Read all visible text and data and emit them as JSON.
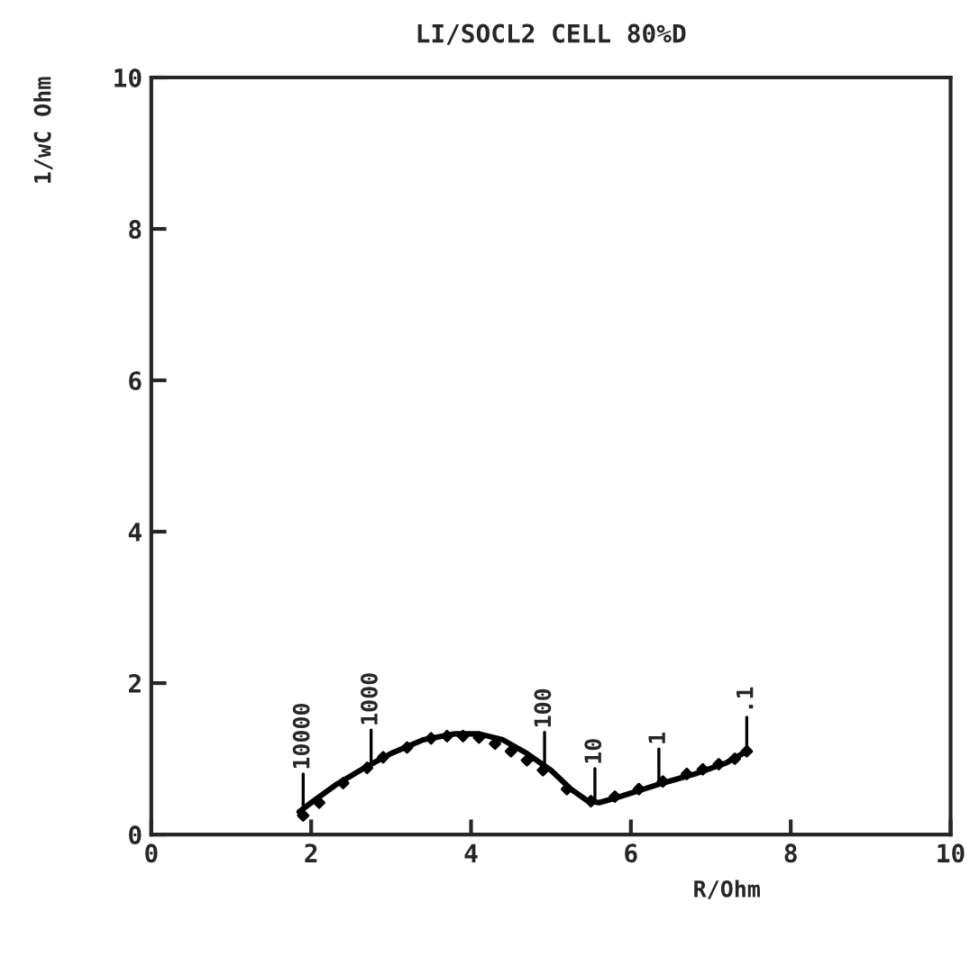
{
  "chart_data": {
    "type": "line",
    "title": "LI/SOCL2 CELL 80%D",
    "xlabel": "R/Ohm",
    "ylabel": "1/wC Ohm",
    "xlim": [
      0,
      10
    ],
    "ylim": [
      0,
      10
    ],
    "xticks": [
      0,
      2,
      4,
      6,
      8,
      10
    ],
    "yticks": [
      0,
      2,
      4,
      6,
      8,
      10
    ],
    "grid": false,
    "legend": false,
    "series": [
      {
        "color": "#000000",
        "marker": "none",
        "line_style": "solid",
        "x": [
          1.85,
          2.0,
          2.3,
          2.7,
          3.0,
          3.4,
          3.8,
          4.1,
          4.4,
          4.7,
          5.0,
          5.25,
          5.45,
          5.6,
          5.8,
          6.1,
          6.4,
          6.8,
          7.2,
          7.45
        ],
        "values": [
          0.3,
          0.42,
          0.65,
          0.9,
          1.07,
          1.25,
          1.33,
          1.33,
          1.25,
          1.07,
          0.85,
          0.6,
          0.45,
          0.42,
          0.48,
          0.58,
          0.68,
          0.8,
          0.95,
          1.1
        ]
      },
      {
        "type": "scatter",
        "color": "#000000",
        "marker": "diamond",
        "x": [
          1.9,
          2.1,
          2.4,
          2.7,
          2.9,
          3.2,
          3.5,
          3.7,
          3.9,
          4.1,
          4.3,
          4.5,
          4.7,
          4.9,
          5.2,
          5.5,
          5.8,
          6.1,
          6.4,
          6.7,
          6.9,
          7.1,
          7.3,
          7.45
        ],
        "values": [
          0.25,
          0.42,
          0.68,
          0.88,
          1.02,
          1.15,
          1.27,
          1.3,
          1.3,
          1.28,
          1.2,
          1.1,
          0.98,
          0.85,
          0.6,
          0.44,
          0.5,
          0.6,
          0.7,
          0.8,
          0.86,
          0.93,
          1.0,
          1.1
        ]
      }
    ],
    "annotations": [
      {
        "text": "10000",
        "x": 1.9,
        "y": 0.35
      },
      {
        "text": "1000",
        "x": 2.75,
        "y": 0.93
      },
      {
        "text": "100",
        "x": 4.92,
        "y": 0.9
      },
      {
        "text": "10",
        "x": 5.55,
        "y": 0.42
      },
      {
        "text": "1",
        "x": 6.35,
        "y": 0.68
      },
      {
        "text": ".1",
        "x": 7.45,
        "y": 1.1
      }
    ]
  }
}
